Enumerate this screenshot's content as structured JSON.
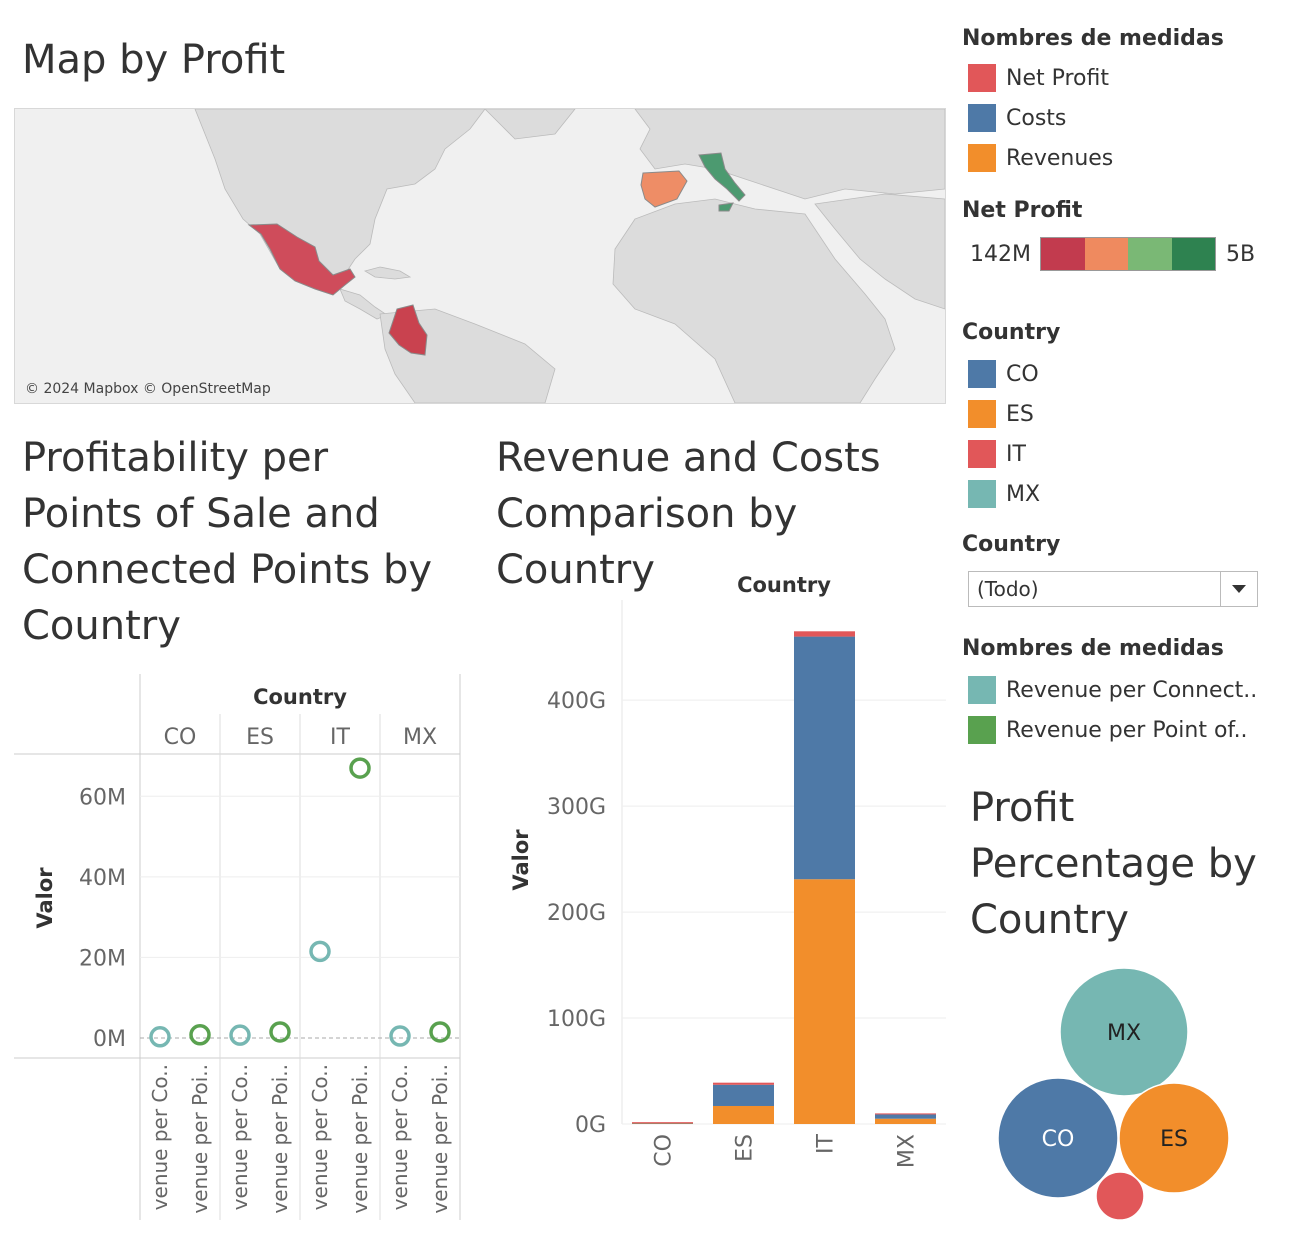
{
  "colors": {
    "net_profit": "#e15759",
    "costs": "#4e79a7",
    "revenues": "#f28e2b",
    "co": "#4e79a7",
    "es": "#f28e2b",
    "it": "#e15759",
    "mx": "#76b7b2",
    "rev_conn": "#76b7b2",
    "rev_pos": "#59a14f",
    "map_land": "#dcdcdc",
    "map_water": "#f3f3f3"
  },
  "map": {
    "title": "Map by Profit",
    "attribution": "© 2024 Mapbox © OpenStreetMap",
    "countries": [
      {
        "code": "MX",
        "color": "#cf4c5b"
      },
      {
        "code": "CO",
        "color": "#c9424f"
      },
      {
        "code": "ES",
        "color": "#ee8d66"
      },
      {
        "code": "IT",
        "color": "#4c9a70"
      }
    ]
  },
  "legend": {
    "measures_title": "Nombres de medidas",
    "measures": [
      {
        "label": "Net Profit",
        "color": "#e15759"
      },
      {
        "label": "Costs",
        "color": "#4e79a7"
      },
      {
        "label": "Revenues",
        "color": "#f28e2b"
      }
    ],
    "net_profit_title": "Net Profit",
    "net_profit_min": "142M",
    "net_profit_max": "5B",
    "net_profit_ramp": [
      "#c23b4e",
      "#ef8a5f",
      "#7ab875",
      "#2e8250"
    ],
    "country_title": "Country",
    "countries": [
      {
        "label": "CO",
        "color": "#4e79a7"
      },
      {
        "label": "ES",
        "color": "#f28e2b"
      },
      {
        "label": "IT",
        "color": "#e15759"
      },
      {
        "label": "MX",
        "color": "#76b7b2"
      }
    ],
    "filter_title": "Country",
    "filter_value": "(Todo)",
    "measures2_title": "Nombres de medidas",
    "measures2": [
      {
        "label": "Revenue per Connect..",
        "color": "#76b7b2"
      },
      {
        "label": "Revenue per Point of..",
        "color": "#59a14f"
      }
    ]
  },
  "chart_data": [
    {
      "type": "scatter",
      "title": "Profitability per Points of Sale and Connected Points by Country",
      "column_header": "Country",
      "ylabel": "Valor",
      "ylim": [
        0,
        70000000
      ],
      "yticks": [
        0,
        20000000,
        40000000,
        60000000
      ],
      "ytick_labels": [
        "0M",
        "20M",
        "40M",
        "60M"
      ],
      "categories": [
        "CO",
        "ES",
        "IT",
        "MX"
      ],
      "sub_labels": [
        "venue per Co..",
        "venue per Poi.."
      ],
      "series": [
        {
          "name": "Revenue per Connected Points",
          "color": "#76b7b2",
          "values": [
            300000,
            700000,
            21500000,
            500000
          ]
        },
        {
          "name": "Revenue per Point of Sale",
          "color": "#59a14f",
          "values": [
            800000,
            1500000,
            67000000,
            1500000
          ]
        }
      ]
    },
    {
      "type": "bar",
      "stacked": true,
      "title": "Revenue and Costs Comparison by Country",
      "column_header": "Country",
      "ylabel": "Valor",
      "ylim": [
        0,
        470
      ],
      "yticks": [
        0,
        100,
        200,
        300,
        400
      ],
      "ytick_labels": [
        "0G",
        "100G",
        "200G",
        "300G",
        "400G"
      ],
      "categories": [
        "CO",
        "ES",
        "IT",
        "MX"
      ],
      "series": [
        {
          "name": "Revenues",
          "color": "#f28e2b",
          "values": [
            0.4,
            17,
            231,
            5
          ]
        },
        {
          "name": "Costs",
          "color": "#4e79a7",
          "values": [
            0.4,
            20,
            229,
            4
          ]
        },
        {
          "name": "Net Profit",
          "color": "#e15759",
          "values": [
            0.2,
            2,
            5,
            1
          ]
        }
      ]
    },
    {
      "type": "bubble",
      "title": "Profit Percentage by Country",
      "labels": [
        "MX",
        "CO",
        "ES",
        ""
      ],
      "categories": [
        "MX",
        "CO",
        "ES",
        "IT"
      ],
      "values": [
        35,
        30,
        26,
        5
      ],
      "colors": [
        "#76b7b2",
        "#4e79a7",
        "#f28e2b",
        "#e15759"
      ]
    }
  ]
}
